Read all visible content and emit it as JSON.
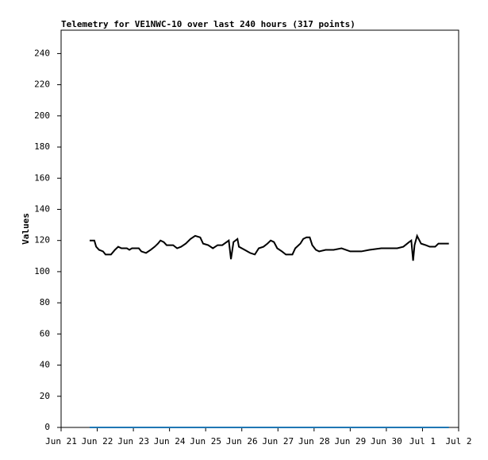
{
  "chart_data": {
    "type": "line",
    "title": "Telemetry for VE1NWC-10 over last 240 hours (317 points)",
    "y_label": "Values",
    "xlim": [
      0,
      11
    ],
    "xticks": [
      {
        "value": 0,
        "label": "Jun 21"
      },
      {
        "value": 1,
        "label": "Jun 22"
      },
      {
        "value": 2,
        "label": "Jun 23"
      },
      {
        "value": 3,
        "label": "Jun 24"
      },
      {
        "value": 4,
        "label": "Jun 25"
      },
      {
        "value": 5,
        "label": "Jun 26"
      },
      {
        "value": 6,
        "label": "Jun 27"
      },
      {
        "value": 7,
        "label": "Jun 28"
      },
      {
        "value": 8,
        "label": "Jun 29"
      },
      {
        "value": 9,
        "label": "Jun 30"
      },
      {
        "value": 10,
        "label": "Jul 1"
      },
      {
        "value": 11,
        "label": "Jul 2"
      }
    ],
    "ylim": [
      0,
      255
    ],
    "yticks": [
      0,
      20,
      40,
      60,
      80,
      100,
      120,
      140,
      160,
      180,
      200,
      220,
      240
    ],
    "series": [
      {
        "color": "#000000",
        "x": [
          0.79,
          0.92,
          0.97,
          1.05,
          1.16,
          1.23,
          1.38,
          1.49,
          1.58,
          1.67,
          1.82,
          1.89,
          1.96,
          2.15,
          2.22,
          2.35,
          2.48,
          2.59,
          2.68,
          2.75,
          2.84,
          2.92,
          3.1,
          3.21,
          3.32,
          3.45,
          3.58,
          3.71,
          3.85,
          3.93,
          4.07,
          4.2,
          4.33,
          4.46,
          4.64,
          4.7,
          4.77,
          4.88,
          4.92,
          5.08,
          5.23,
          5.36,
          5.47,
          5.6,
          5.71,
          5.8,
          5.89,
          5.98,
          6.11,
          6.22,
          6.4,
          6.48,
          6.62,
          6.7,
          6.79,
          6.88,
          6.95,
          7.05,
          7.14,
          7.32,
          7.54,
          7.76,
          8.0,
          8.31,
          8.53,
          8.86,
          9.3,
          9.47,
          9.63,
          9.69,
          9.74,
          9.78,
          9.85,
          9.96,
          10.09,
          10.2,
          10.35,
          10.44,
          10.62,
          10.73
        ],
        "values": [
          120,
          120,
          116,
          114,
          113,
          111,
          111,
          114,
          116,
          115,
          115,
          114,
          115,
          115,
          113,
          112,
          114,
          116,
          118,
          120,
          119,
          117,
          117,
          115,
          116,
          118,
          121,
          123,
          122,
          118,
          117,
          115,
          117,
          117,
          120,
          108,
          119,
          121,
          116,
          114,
          112,
          111,
          115,
          116,
          118,
          120,
          119,
          115,
          113,
          111,
          111,
          115,
          118,
          121,
          122,
          122,
          117,
          114,
          113,
          114,
          114,
          115,
          113,
          113,
          114,
          115,
          115,
          116,
          119,
          120,
          107,
          117,
          123,
          118,
          117,
          116,
          116,
          118,
          118,
          118
        ]
      },
      {
        "color": "#1f77b4",
        "x": [
          0.79,
          10.73
        ],
        "values": [
          0,
          0
        ]
      }
    ]
  }
}
